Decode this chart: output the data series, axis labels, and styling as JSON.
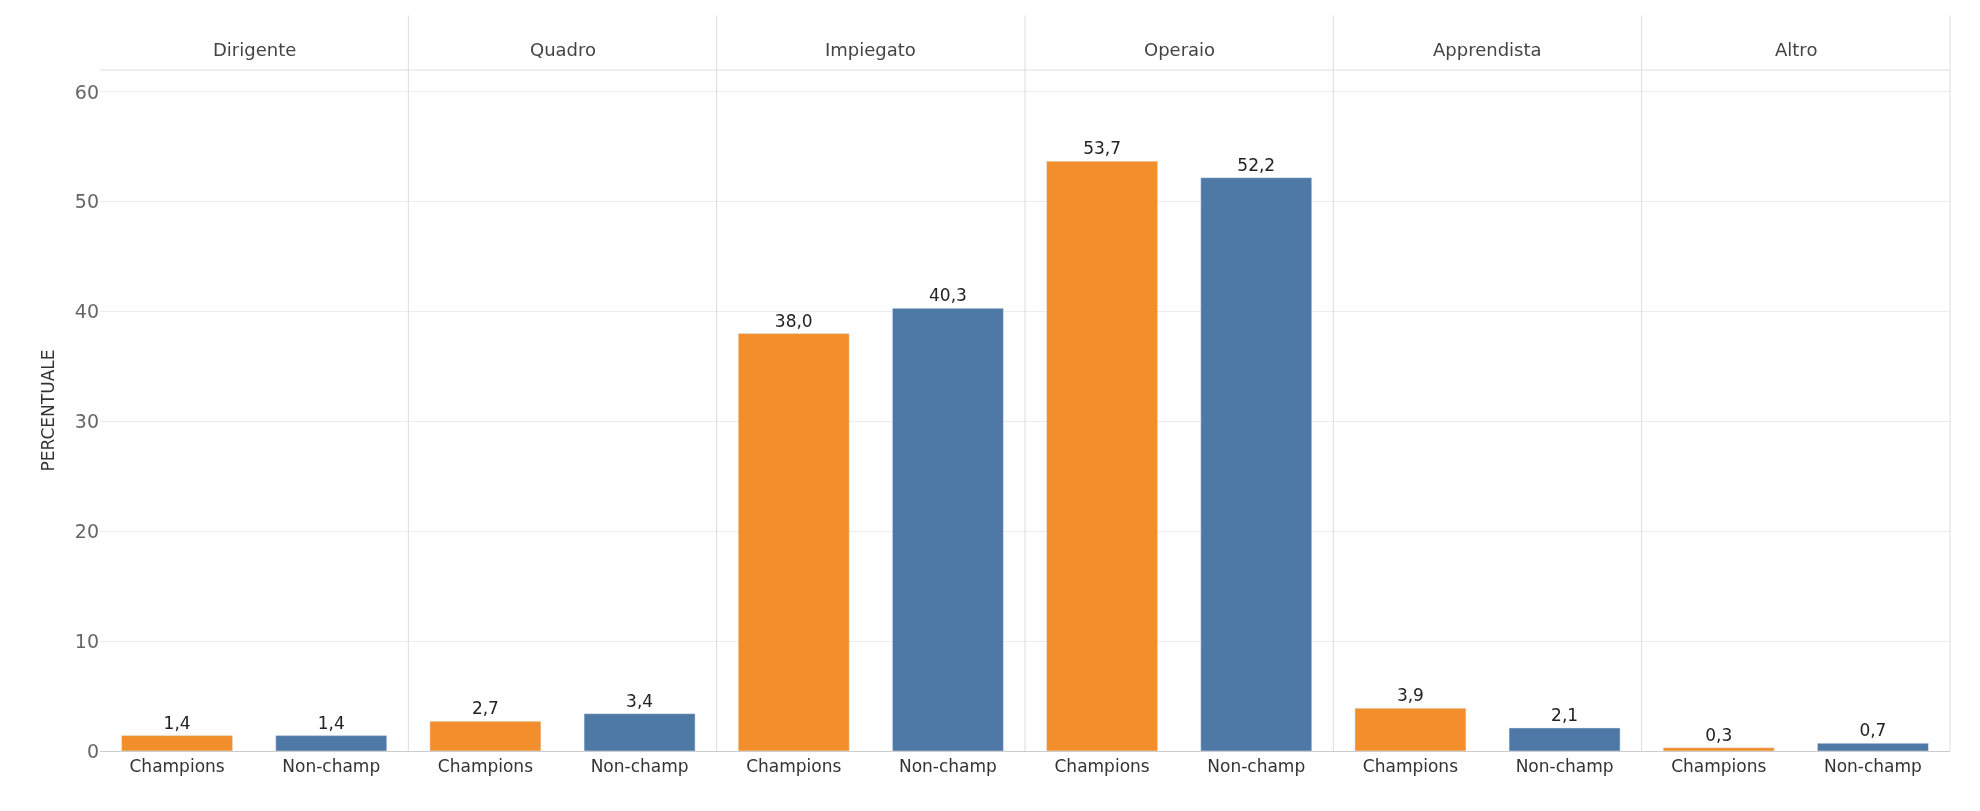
{
  "chart_data": [
    {
      "type": "bar",
      "title": "Dirigente",
      "ylabel": "PERCENTUALE",
      "categories": [
        "Champions",
        "Non-champ"
      ],
      "values": [
        1.4,
        1.4
      ],
      "colors": [
        "#f28e2b",
        "#4e79a7"
      ],
      "value_labels": [
        "1,4",
        "1,4"
      ],
      "ylim": [
        0,
        62
      ],
      "yticks": [
        0,
        10,
        20,
        30,
        40,
        50,
        60
      ],
      "grid": "y"
    },
    {
      "type": "bar",
      "title": "Quadro",
      "categories": [
        "Champions",
        "Non-champ"
      ],
      "values": [
        2.7,
        3.4
      ],
      "colors": [
        "#f28e2b",
        "#4e79a7"
      ],
      "value_labels": [
        "2,7",
        "3,4"
      ],
      "ylim": [
        0,
        62
      ],
      "yticks": [
        0,
        10,
        20,
        30,
        40,
        50,
        60
      ],
      "grid": "y",
      "tick_labels": "x"
    },
    {
      "type": "bar",
      "title": "Impiegato",
      "categories": [
        "Champions",
        "Non-champ"
      ],
      "values": [
        38.0,
        40.3
      ],
      "colors": [
        "#f28e2b",
        "#4e79a7"
      ],
      "value_labels": [
        "38,0",
        "40,3"
      ],
      "ylim": [
        0,
        62
      ],
      "yticks": [
        0,
        10,
        20,
        30,
        40,
        50,
        60
      ],
      "grid": "y",
      "tick_labels": "x"
    },
    {
      "type": "bar",
      "title": "Operaio",
      "categories": [
        "Champions",
        "Non-champ"
      ],
      "values": [
        53.7,
        52.2
      ],
      "colors": [
        "#f28e2b",
        "#4e79a7"
      ],
      "value_labels": [
        "53,7",
        "52,2"
      ],
      "ylim": [
        0,
        62
      ],
      "yticks": [
        0,
        10,
        20,
        30,
        40,
        50,
        60
      ],
      "grid": "y",
      "tick_labels": "x"
    },
    {
      "type": "bar",
      "title": "Apprendista",
      "categories": [
        "Champions",
        "Non-champ"
      ],
      "values": [
        3.9,
        2.1
      ],
      "colors": [
        "#f28e2b",
        "#4e79a7"
      ],
      "value_labels": [
        "3,9",
        "2,1"
      ],
      "ylim": [
        0,
        62
      ],
      "yticks": [
        0,
        10,
        20,
        30,
        40,
        50,
        60
      ],
      "grid": "y",
      "tick_labels": "x"
    },
    {
      "type": "bar",
      "title": "Altro",
      "categories": [
        "Champions",
        "Non-champ"
      ],
      "values": [
        0.3,
        0.7
      ],
      "colors": [
        "#f28e2b",
        "#4e79a7"
      ],
      "value_labels": [
        "0,3",
        "0,7"
      ],
      "ylim": [
        0,
        62
      ],
      "yticks": [
        0,
        10,
        20,
        30,
        40,
        50,
        60
      ],
      "grid": "y",
      "tick_labels": "x"
    }
  ]
}
